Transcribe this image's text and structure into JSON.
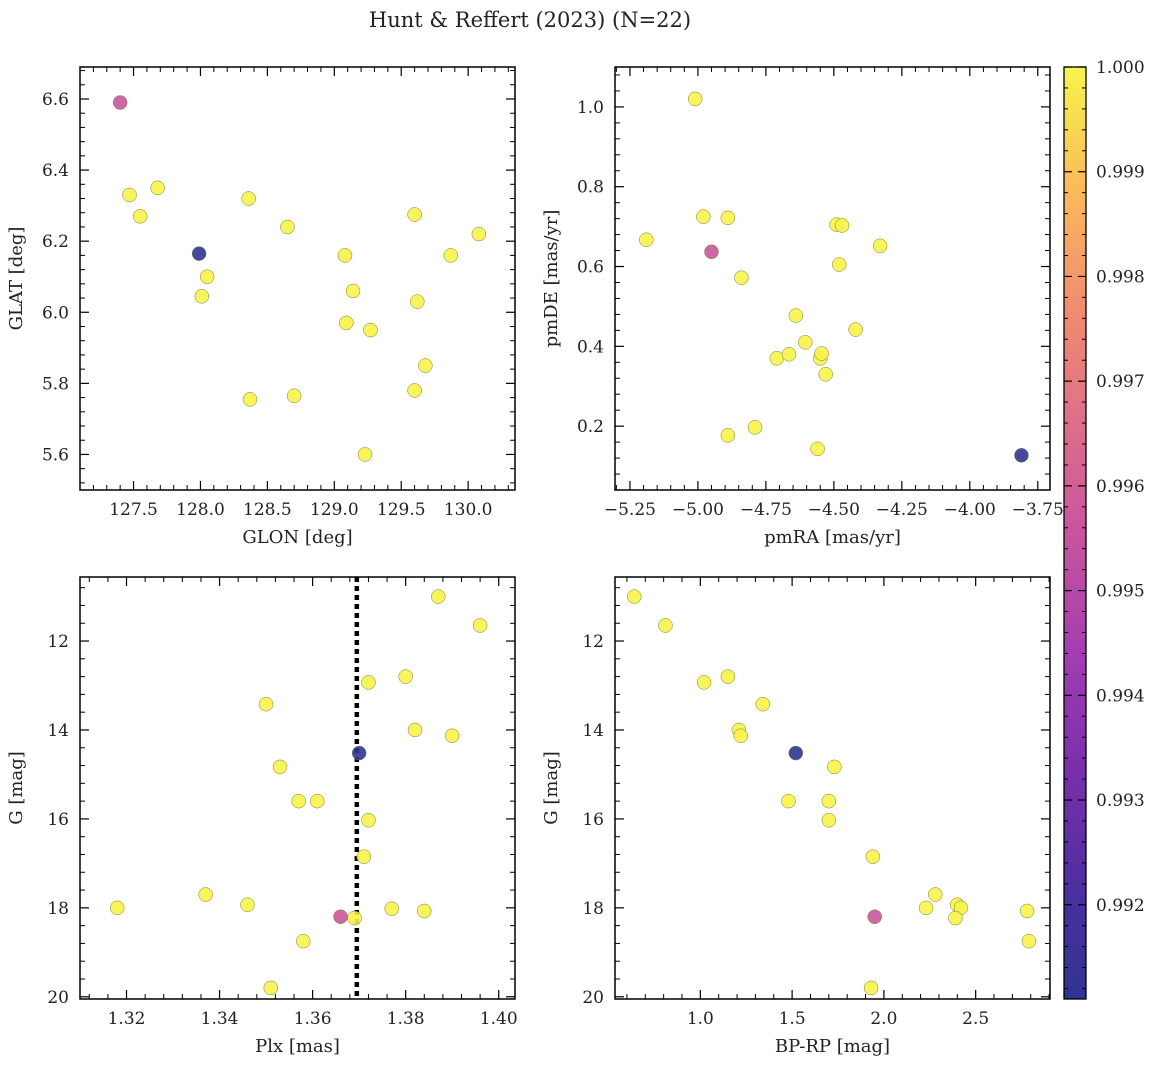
{
  "figure_title": "Hunt & Reffert (2023) (N=22)",
  "colorbar": {
    "colormap": "plasma",
    "vmin": 0.9911,
    "vmax": 1.0,
    "ticks": [
      0.992,
      0.993,
      0.994,
      0.995,
      0.996,
      0.997,
      0.998,
      0.999,
      1.0
    ],
    "tick_labels": [
      "0.992",
      "0.993",
      "0.994",
      "0.995",
      "0.996",
      "0.997",
      "0.998",
      "0.999",
      "1.000"
    ]
  },
  "chart_data": [
    {
      "type": "scatter",
      "id": "p1",
      "xlabel": "GLON [deg]",
      "ylabel": "GLAT [deg]",
      "xlim": [
        127.1,
        130.35
      ],
      "ylim": [
        5.5,
        6.69
      ],
      "invert_y": false,
      "xticks": [
        127.5,
        128.0,
        128.5,
        129.0,
        129.5,
        130.0
      ],
      "xtick_labels": [
        "127.5",
        "128.0",
        "128.5",
        "129.0",
        "129.5",
        "130.0"
      ],
      "yticks": [
        5.6,
        5.8,
        6.0,
        6.2,
        6.4,
        6.6
      ],
      "ytick_labels": [
        "5.6",
        "5.8",
        "6.0",
        "6.2",
        "6.4",
        "6.6"
      ],
      "points": [
        {
          "x": 127.4,
          "y": 6.59,
          "c": 0.9956
        },
        {
          "x": 127.47,
          "y": 6.33,
          "c": 1.0
        },
        {
          "x": 127.55,
          "y": 6.27,
          "c": 1.0
        },
        {
          "x": 127.68,
          "y": 6.35,
          "c": 1.0
        },
        {
          "x": 127.99,
          "y": 6.165,
          "c": 0.9911
        },
        {
          "x": 128.05,
          "y": 6.1,
          "c": 1.0
        },
        {
          "x": 128.01,
          "y": 6.045,
          "c": 1.0
        },
        {
          "x": 128.36,
          "y": 6.32,
          "c": 1.0
        },
        {
          "x": 128.37,
          "y": 5.755,
          "c": 1.0
        },
        {
          "x": 128.65,
          "y": 6.24,
          "c": 1.0
        },
        {
          "x": 128.7,
          "y": 5.765,
          "c": 1.0
        },
        {
          "x": 129.08,
          "y": 6.16,
          "c": 1.0
        },
        {
          "x": 129.09,
          "y": 5.97,
          "c": 1.0
        },
        {
          "x": 129.14,
          "y": 6.06,
          "c": 1.0
        },
        {
          "x": 129.23,
          "y": 5.6,
          "c": 1.0
        },
        {
          "x": 129.27,
          "y": 5.95,
          "c": 1.0
        },
        {
          "x": 129.6,
          "y": 6.275,
          "c": 1.0
        },
        {
          "x": 129.62,
          "y": 6.03,
          "c": 1.0
        },
        {
          "x": 129.6,
          "y": 5.78,
          "c": 1.0
        },
        {
          "x": 129.68,
          "y": 5.85,
          "c": 1.0
        },
        {
          "x": 129.87,
          "y": 6.16,
          "c": 1.0
        },
        {
          "x": 130.08,
          "y": 6.22,
          "c": 1.0
        }
      ]
    },
    {
      "type": "scatter",
      "id": "p2",
      "xlabel": "pmRA [mas/yr]",
      "ylabel": "pmDE [mas/yr]",
      "xlim": [
        -5.305,
        -3.705
      ],
      "ylim": [
        0.04,
        1.1
      ],
      "invert_y": false,
      "xticks": [
        -5.25,
        -5.0,
        -4.75,
        -4.5,
        -4.25,
        -4.0,
        -3.75
      ],
      "xtick_labels": [
        "−5.25",
        "−5.00",
        "−4.75",
        "−4.50",
        "−4.25",
        "−4.00",
        "−3.75"
      ],
      "yticks": [
        0.2,
        0.4,
        0.6,
        0.8,
        1.0
      ],
      "ytick_labels": [
        "0.2",
        "0.4",
        "0.6",
        "0.8",
        "1.0"
      ],
      "points": [
        {
          "x": -5.19,
          "y": 0.667,
          "c": 1.0
        },
        {
          "x": -5.01,
          "y": 1.02,
          "c": 1.0
        },
        {
          "x": -4.98,
          "y": 0.725,
          "c": 1.0
        },
        {
          "x": -4.95,
          "y": 0.637,
          "c": 0.9956
        },
        {
          "x": -4.89,
          "y": 0.722,
          "c": 1.0
        },
        {
          "x": -4.89,
          "y": 0.177,
          "c": 1.0
        },
        {
          "x": -4.84,
          "y": 0.572,
          "c": 1.0
        },
        {
          "x": -4.79,
          "y": 0.197,
          "c": 1.0
        },
        {
          "x": -4.71,
          "y": 0.37,
          "c": 1.0
        },
        {
          "x": -4.665,
          "y": 0.38,
          "c": 1.0
        },
        {
          "x": -4.64,
          "y": 0.477,
          "c": 1.0
        },
        {
          "x": -4.605,
          "y": 0.41,
          "c": 1.0
        },
        {
          "x": -4.56,
          "y": 0.143,
          "c": 1.0
        },
        {
          "x": -4.55,
          "y": 0.37,
          "c": 1.0
        },
        {
          "x": -4.545,
          "y": 0.382,
          "c": 1.0
        },
        {
          "x": -4.53,
          "y": 0.33,
          "c": 1.0
        },
        {
          "x": -4.49,
          "y": 0.705,
          "c": 1.0
        },
        {
          "x": -4.48,
          "y": 0.605,
          "c": 1.0
        },
        {
          "x": -4.47,
          "y": 0.703,
          "c": 1.0
        },
        {
          "x": -4.42,
          "y": 0.442,
          "c": 1.0
        },
        {
          "x": -4.33,
          "y": 0.652,
          "c": 1.0
        },
        {
          "x": -3.81,
          "y": 0.127,
          "c": 0.9911
        }
      ]
    },
    {
      "type": "scatter",
      "id": "p3",
      "xlabel": "Plx [mas]",
      "ylabel": "G [mag]",
      "xlim": [
        1.31,
        1.4035
      ],
      "ylim": [
        10.56,
        20.05
      ],
      "invert_y": true,
      "vline": 1.3695,
      "xticks": [
        1.32,
        1.34,
        1.36,
        1.38,
        1.4
      ],
      "xtick_labels": [
        "1.32",
        "1.34",
        "1.36",
        "1.38",
        "1.40"
      ],
      "yticks": [
        12,
        14,
        16,
        18,
        20
      ],
      "ytick_labels": [
        "12",
        "14",
        "16",
        "18",
        "20"
      ],
      "points": [
        {
          "x": 1.387,
          "y": 11.0,
          "c": 1.0
        },
        {
          "x": 1.396,
          "y": 11.65,
          "c": 1.0
        },
        {
          "x": 1.38,
          "y": 12.8,
          "c": 1.0
        },
        {
          "x": 1.372,
          "y": 12.93,
          "c": 1.0
        },
        {
          "x": 1.35,
          "y": 13.42,
          "c": 1.0
        },
        {
          "x": 1.382,
          "y": 14.0,
          "c": 1.0
        },
        {
          "x": 1.39,
          "y": 14.13,
          "c": 1.0
        },
        {
          "x": 1.37,
          "y": 14.52,
          "c": 0.9911
        },
        {
          "x": 1.353,
          "y": 14.83,
          "c": 1.0
        },
        {
          "x": 1.357,
          "y": 15.6,
          "c": 1.0
        },
        {
          "x": 1.361,
          "y": 15.6,
          "c": 1.0
        },
        {
          "x": 1.372,
          "y": 16.03,
          "c": 1.0
        },
        {
          "x": 1.371,
          "y": 16.85,
          "c": 1.0
        },
        {
          "x": 1.337,
          "y": 17.7,
          "c": 1.0
        },
        {
          "x": 1.346,
          "y": 17.93,
          "c": 1.0
        },
        {
          "x": 1.318,
          "y": 18.0,
          "c": 1.0
        },
        {
          "x": 1.377,
          "y": 18.02,
          "c": 1.0
        },
        {
          "x": 1.384,
          "y": 18.07,
          "c": 1.0
        },
        {
          "x": 1.366,
          "y": 18.2,
          "c": 0.9956
        },
        {
          "x": 1.369,
          "y": 18.23,
          "c": 1.0
        },
        {
          "x": 1.358,
          "y": 18.75,
          "c": 1.0
        },
        {
          "x": 1.351,
          "y": 19.8,
          "c": 1.0
        }
      ]
    },
    {
      "type": "scatter",
      "id": "p4",
      "xlabel": "BP-RP [mag]",
      "ylabel": "G [mag]",
      "xlim": [
        0.535,
        2.905
      ],
      "ylim": [
        10.56,
        20.05
      ],
      "invert_y": true,
      "xticks": [
        1.0,
        1.5,
        2.0,
        2.5
      ],
      "xtick_labels": [
        "1.0",
        "1.5",
        "2.0",
        "2.5"
      ],
      "yticks": [
        12,
        14,
        16,
        18,
        20
      ],
      "ytick_labels": [
        "12",
        "14",
        "16",
        "18",
        "20"
      ],
      "points": [
        {
          "x": 0.64,
          "y": 11.0,
          "c": 1.0
        },
        {
          "x": 0.81,
          "y": 11.65,
          "c": 1.0
        },
        {
          "x": 1.02,
          "y": 12.93,
          "c": 1.0
        },
        {
          "x": 1.15,
          "y": 12.8,
          "c": 1.0
        },
        {
          "x": 1.34,
          "y": 13.42,
          "c": 1.0
        },
        {
          "x": 1.21,
          "y": 14.0,
          "c": 1.0
        },
        {
          "x": 1.22,
          "y": 14.13,
          "c": 1.0
        },
        {
          "x": 1.52,
          "y": 14.52,
          "c": 0.9911
        },
        {
          "x": 1.73,
          "y": 14.83,
          "c": 1.0
        },
        {
          "x": 1.48,
          "y": 15.6,
          "c": 1.0
        },
        {
          "x": 1.7,
          "y": 15.6,
          "c": 1.0
        },
        {
          "x": 1.7,
          "y": 16.03,
          "c": 1.0
        },
        {
          "x": 1.94,
          "y": 16.85,
          "c": 1.0
        },
        {
          "x": 2.28,
          "y": 17.7,
          "c": 1.0
        },
        {
          "x": 2.4,
          "y": 17.93,
          "c": 1.0
        },
        {
          "x": 2.23,
          "y": 18.0,
          "c": 1.0
        },
        {
          "x": 2.42,
          "y": 18.0,
          "c": 1.0
        },
        {
          "x": 2.78,
          "y": 18.07,
          "c": 1.0
        },
        {
          "x": 1.95,
          "y": 18.2,
          "c": 0.9956
        },
        {
          "x": 2.39,
          "y": 18.23,
          "c": 1.0
        },
        {
          "x": 2.79,
          "y": 18.75,
          "c": 1.0
        },
        {
          "x": 1.93,
          "y": 19.8,
          "c": 1.0
        }
      ]
    }
  ]
}
